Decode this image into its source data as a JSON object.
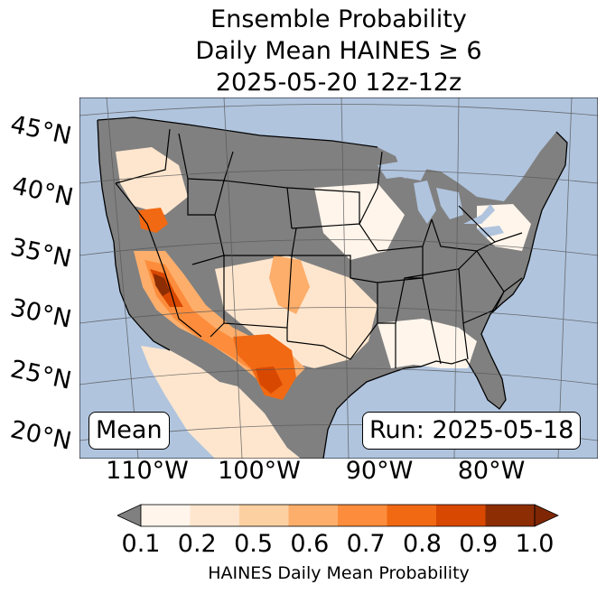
{
  "title": {
    "line1": "Ensemble Probability",
    "line2": "Daily Mean HAINES ≥ 6",
    "line3": "2025-05-20 12z-12z"
  },
  "map": {
    "lat_labels": [
      "45°N",
      "40°N",
      "35°N",
      "30°N",
      "25°N",
      "20°N"
    ],
    "lon_labels": [
      "110°W",
      "100°W",
      "90°W",
      "80°W"
    ],
    "mean_label": "Mean",
    "run_label": "Run: 2025-05-18",
    "colors": {
      "ocean": "#b0c4de",
      "missing": "#808080"
    }
  },
  "colorbar": {
    "label": "HAINES Daily Mean Probability",
    "ticks": [
      "0.1",
      "0.2",
      "0.5",
      "0.6",
      "0.7",
      "0.8",
      "0.9",
      "1.0"
    ],
    "colors": [
      "#fff5eb",
      "#fee6ce",
      "#fdd0a2",
      "#fdae6b",
      "#fd8d3c",
      "#f16913",
      "#d94801",
      "#8c2d04"
    ],
    "under_color": "#808080",
    "over_color": "#7f2704"
  }
}
